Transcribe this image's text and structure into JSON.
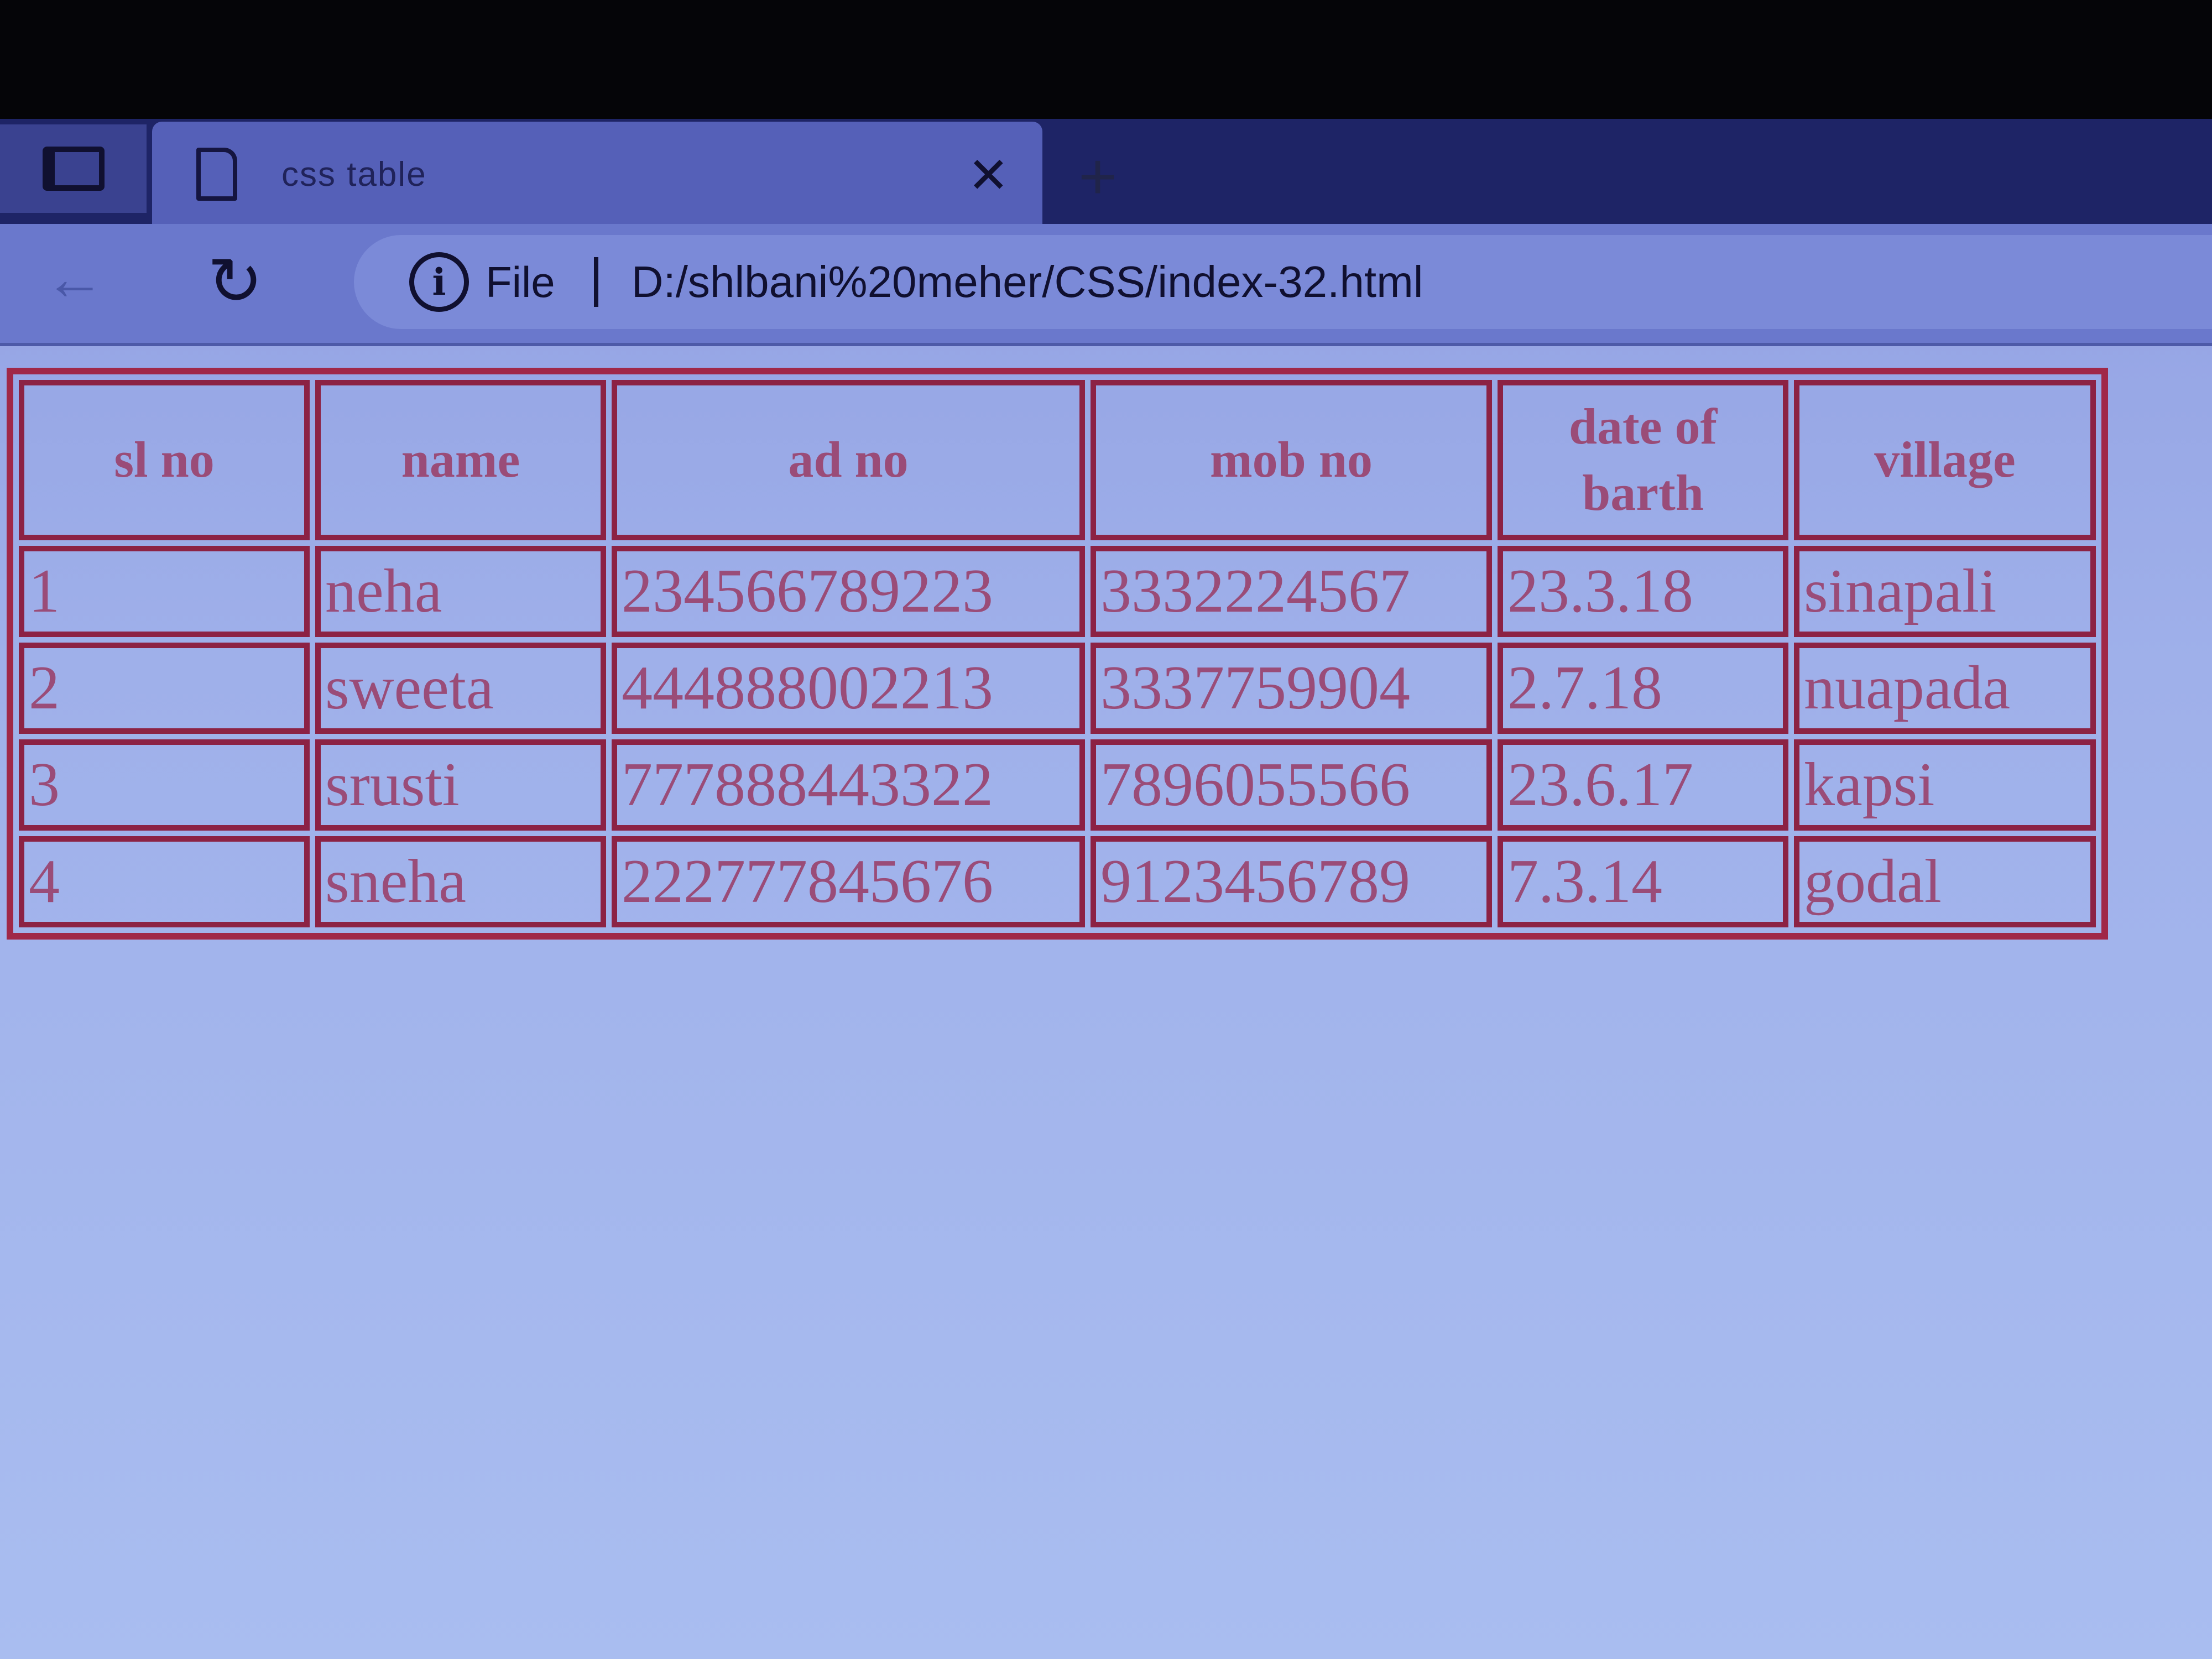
{
  "browser": {
    "tab_title": "css table",
    "address_prefix": "File",
    "url": "D:/shlbani%20meher/CSS/index-32.html",
    "icons": {
      "sidebar": "sidebar-icon",
      "page": "document-icon",
      "close": "✕",
      "new_tab": "+",
      "back": "←",
      "reload": "↻",
      "info": "i"
    }
  },
  "table": {
    "headers": [
      "sl no",
      "name",
      "ad no",
      "mob no",
      "date of barth",
      "village"
    ],
    "rows": [
      [
        "1",
        "neha",
        "234566789223",
        "3332224567",
        "23.3.18",
        "sinapali"
      ],
      [
        "2",
        "sweeta",
        "444888002213",
        "3337759904",
        "2.7.18",
        "nuapada"
      ],
      [
        "3",
        "srusti",
        "777888443322",
        "7896055566",
        "23.6.17",
        "kapsi"
      ],
      [
        "4",
        "sneha",
        "222777845676",
        "9123456789",
        "7.3.14",
        "godal"
      ]
    ]
  },
  "colors": {
    "text": "#9a4c78",
    "border": "#a02848",
    "background": "#9fb0ea"
  }
}
